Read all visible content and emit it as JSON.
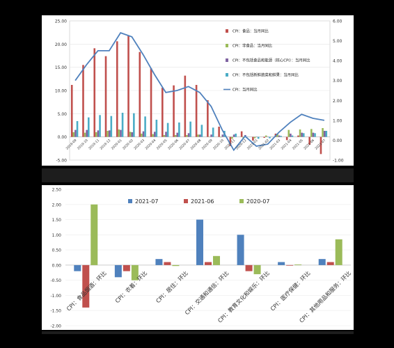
{
  "chart_data": [
    {
      "type": "bar+line",
      "categories": [
        "2019-09",
        "2019-10",
        "2019-11",
        "2019-12",
        "2020-01",
        "2020-02",
        "2020-03",
        "2020-04",
        "2020-05",
        "2020-06",
        "2020-07",
        "2020-08",
        "2020-09",
        "2020-10",
        "2020-11",
        "2020-12",
        "2021-01",
        "2021-02",
        "2021-03",
        "2021-04",
        "2021-05",
        "2021-06",
        "2021-07"
      ],
      "tick_labels": [
        "2019-09",
        "2019-10",
        "2019-11",
        "2019-12",
        "2020-01",
        "2020-02",
        "2020-03",
        "2020-04",
        "2020-05",
        "2020-06",
        "2020-07",
        "2020-08",
        "2020-09",
        "2020-10",
        "2020-11",
        "2020-12",
        "2021-01",
        "2021-02",
        "2021-03",
        "2021-04",
        "2021-05",
        "2021-06",
        "2021-07"
      ],
      "y_left": {
        "ylim": [
          -5,
          25
        ],
        "ticks": [
          "-5.00",
          "0.00",
          "5.00",
          "10.00",
          "15.00",
          "20.00",
          "25.00"
        ]
      },
      "y_right": {
        "ylim": [
          -1,
          6
        ],
        "ticks": [
          "-1.00",
          "0.00",
          "1.00",
          "2.00",
          "3.00",
          "4.00",
          "5.00",
          "6.00"
        ]
      },
      "legend_position": "top-right",
      "series": [
        {
          "name": "CPI：食品：当月同比",
          "kind": "bar",
          "axis": "left",
          "color": "#c0504d",
          "values": [
            11.2,
            15.5,
            19.1,
            17.4,
            20.6,
            21.9,
            18.3,
            14.8,
            10.6,
            11.1,
            13.2,
            11.2,
            7.9,
            2.2,
            -2.0,
            1.2,
            -0.8,
            -0.2,
            0.7,
            -0.7,
            0.3,
            -1.7,
            -3.7
          ]
        },
        {
          "name": "CPI：非食品：当月同比",
          "kind": "bar",
          "axis": "left",
          "color": "#9bbb59",
          "values": [
            1.0,
            0.9,
            1.0,
            1.3,
            1.6,
            1.1,
            0.7,
            0.6,
            0.4,
            0.4,
            0.4,
            0.5,
            0.0,
            -0.1,
            -0.4,
            -0.4,
            -0.3,
            0.3,
            0.6,
            1.5,
            1.6,
            1.7,
            1.9
          ]
        },
        {
          "name": "CPI：不包括食品和能源（核心CPI）：当月同比",
          "kind": "bar",
          "axis": "left",
          "color": "#8064a2",
          "values": [
            1.5,
            1.5,
            1.4,
            1.4,
            1.5,
            1.0,
            1.2,
            1.1,
            1.1,
            0.9,
            0.8,
            0.5,
            0.5,
            0.5,
            0.5,
            0.4,
            0.0,
            0.0,
            0.3,
            0.7,
            0.9,
            0.9,
            1.3
          ]
        },
        {
          "name": "CPI：不包括新鲜蔬菜和鲜果：当月同比",
          "kind": "bar",
          "axis": "left",
          "color": "#4bacc6",
          "values": [
            3.4,
            4.2,
            4.7,
            4.5,
            5.2,
            5.1,
            4.4,
            3.7,
            3.0,
            3.1,
            3.3,
            2.6,
            2.0,
            1.3,
            0.7,
            0.0,
            -0.4,
            -0.3,
            0.2,
            0.3,
            0.8,
            0.8,
            1.3
          ]
        },
        {
          "name": "CPI：当月同比",
          "kind": "line",
          "axis": "right",
          "color": "#4f81bd",
          "values": [
            3.0,
            3.8,
            4.5,
            4.5,
            5.4,
            5.2,
            4.3,
            3.3,
            2.4,
            2.5,
            2.7,
            2.4,
            1.7,
            0.5,
            -0.5,
            0.2,
            -0.3,
            -0.2,
            0.4,
            0.9,
            1.3,
            1.1,
            1.0
          ]
        }
      ]
    },
    {
      "type": "bar",
      "categories": [
        "CPI：食品烟酒：环比",
        "CPI：衣着：环比",
        "CPI：居住：环比",
        "CPI：交通和通信：环比",
        "CPI：教育文化和娱乐：环比",
        "CPI：医疗保健：环比",
        "CPI：其他用品和服务：环比"
      ],
      "ylim": [
        -2,
        2.5
      ],
      "y_ticks": [
        "-2.00",
        "-1.50",
        "-1.00",
        "-0.50",
        "0.00",
        "0.50",
        "1.00",
        "1.50",
        "2.00",
        "2.50"
      ],
      "legend_position": "top",
      "series": [
        {
          "name": "2021-07",
          "color": "#4f81bd",
          "values": [
            -0.2,
            -0.4,
            0.2,
            1.5,
            1.0,
            0.1,
            0.2
          ]
        },
        {
          "name": "2021-06",
          "color": "#c0504d",
          "values": [
            -1.4,
            -0.2,
            0.1,
            0.1,
            -0.2,
            0.0,
            0.1
          ]
        },
        {
          "name": "2020-07",
          "color": "#9bbb59",
          "values": [
            2.0,
            -0.5,
            -0.03,
            0.3,
            -0.3,
            0.02,
            0.85
          ]
        }
      ]
    }
  ]
}
